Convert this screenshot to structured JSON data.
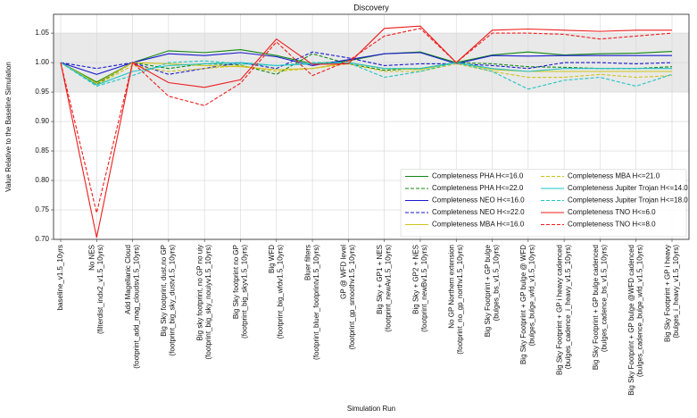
{
  "chart_data": {
    "type": "line",
    "title": "Discovery",
    "x_label": "Simulation Run",
    "y_label": "Value Relative to the Baseline Simulation",
    "categories": [
      [
        "baseline_v1.5_10yrs"
      ],
      [
        "No NES",
        "(filterdist_indx2_v1.5_10yrs)"
      ],
      [
        "Add Magellanic Cloud",
        "(footprint_add_mag_cloudsv1.5_10yrs)"
      ],
      [
        "Big Sky footprint, dust,no GP",
        "(footprint_big_sky_dustv1.5_10yrs)"
      ],
      [
        "Big sky footprint, no GP no uiy",
        "(footprint_big_sky_nouiyv1.5_10yrs)"
      ],
      [
        "Big Sky footprint no GP",
        "(footprint_big_skyv1.5_10yrs)"
      ],
      [
        "Big WFD",
        "(footprint_big_wfdv1.5_10yrs)"
      ],
      [
        "Bluer filters",
        "(footprint_bluer_footprintv1.5_10yrs)"
      ],
      [
        "GP @ WFD level",
        "(footprint_gp_smoothv1.5_10yrs)"
      ],
      [
        "Big Sky + GP1 + NES",
        "(footprint_newAv1.5_10yrs)"
      ],
      [
        "Big Sky + GP2 + NES",
        "(footprint_newBv1.5_10yrs)"
      ],
      [
        "No GP Northern extension",
        "(footprint_no_gp_northv1.5_10yrs)"
      ],
      [
        "Big Sky Footprint + GP bulge",
        "(bulges_bs_v1.5_10yrs)"
      ],
      [
        "Big Sky Footprint + GP bulge @ WFD",
        "(bulges_bulge_wfd_v1.5_10yrs)"
      ],
      [
        "Big Sky Footprint + GP i heavy cadenced",
        "(bulges_cadence_i_heavy_v1.5_10yrs)"
      ],
      [
        "Big Sky Footprint + GP bulge cadenced",
        "(bulges_cadence_bs_v1.5_10yrs)"
      ],
      [
        "Big Sky Footprint + GP bulge @WFD cadenced",
        "(bulges_cadence_bulge_wfd_v1.5_10yrs)"
      ],
      [
        "Big Sky Footprint + GP i heavy",
        "(bulges_i_heavy_v1.5_10yrs)"
      ]
    ],
    "series": [
      {
        "name": "Completeness PHA H<=16.0",
        "color": "#118811",
        "dash": false,
        "values": [
          1,
          0.967,
          1.0,
          1.02,
          1.017,
          1.022,
          1.012,
          0.998,
          1.003,
          1.015,
          1.018,
          1.0,
          1.013,
          1.018,
          1.013,
          1.015,
          1.016,
          1.019
        ]
      },
      {
        "name": "Completeness PHA H<=22.0",
        "color": "#118811",
        "dash": true,
        "values": [
          1,
          0.963,
          1.0,
          0.99,
          0.998,
          0.996,
          0.98,
          1.015,
          0.998,
          0.987,
          0.99,
          1.0,
          0.998,
          0.993,
          0.992,
          0.99,
          0.99,
          0.993
        ]
      },
      {
        "name": "Completeness NEO H<=16.0",
        "color": "#1a1ad0",
        "dash": false,
        "values": [
          1,
          0.98,
          1.0,
          1.015,
          1.012,
          1.017,
          1.01,
          0.995,
          1.005,
          1.015,
          1.017,
          0.998,
          1.012,
          1.011,
          1.012,
          1.012,
          1.012,
          1.012
        ]
      },
      {
        "name": "Completeness NEO H<=22.0",
        "color": "#1a1ad0",
        "dash": true,
        "values": [
          1,
          0.99,
          1.0,
          0.98,
          0.99,
          1.0,
          0.99,
          1.018,
          1.008,
          0.995,
          0.998,
          0.998,
          0.995,
          0.99,
          1.0,
          1.0,
          0.998,
          1.0
        ]
      },
      {
        "name": "Completeness MBA H<=16.0",
        "color": "#cfc31a",
        "dash": false,
        "values": [
          1,
          0.965,
          1.0,
          0.998,
          0.995,
          0.993,
          0.988,
          0.99,
          1.0,
          0.99,
          0.988,
          1.0,
          0.988,
          0.985,
          0.985,
          0.985,
          0.985,
          0.985
        ]
      },
      {
        "name": "Completeness MBA H<=21.0",
        "color": "#cfc31a",
        "dash": true,
        "values": [
          1,
          0.962,
          0.995,
          0.985,
          0.99,
          0.995,
          0.985,
          0.99,
          0.998,
          0.985,
          0.985,
          0.998,
          0.985,
          0.975,
          0.975,
          0.98,
          0.975,
          0.978
        ]
      },
      {
        "name": "Completeness Jupiter Trojan H<=14.0",
        "color": "#22c4c4",
        "dash": false,
        "values": [
          1,
          0.962,
          0.985,
          0.995,
          0.998,
          1.0,
          0.995,
          0.998,
          1.0,
          0.99,
          0.99,
          1.0,
          0.99,
          0.985,
          0.99,
          0.99,
          0.99,
          0.99
        ]
      },
      {
        "name": "Completeness Jupiter Trojan H<=18.0",
        "color": "#22c4c4",
        "dash": true,
        "values": [
          1,
          0.96,
          0.978,
          1.0,
          1.003,
          0.998,
          0.995,
          1.0,
          1.0,
          0.975,
          0.985,
          1.0,
          0.985,
          0.955,
          0.97,
          0.975,
          0.96,
          0.98
        ]
      },
      {
        "name": "Completeness TNO H<=6.0",
        "color": "#ee1c1c",
        "dash": false,
        "values": [
          1,
          0.703,
          1.0,
          0.966,
          0.958,
          0.971,
          1.04,
          0.997,
          0.998,
          1.058,
          1.062,
          1.0,
          1.055,
          1.057,
          1.055,
          1.053,
          1.055,
          1.055
        ]
      },
      {
        "name": "Completeness TNO H<=8.0",
        "color": "#ee1c1c",
        "dash": true,
        "values": [
          1,
          0.745,
          1.0,
          0.943,
          0.927,
          0.965,
          1.035,
          0.978,
          1.003,
          1.045,
          1.058,
          1.0,
          1.05,
          1.05,
          1.048,
          1.04,
          1.045,
          1.05
        ]
      }
    ],
    "ylim": [
      0.7,
      1.082
    ],
    "yticks": [
      {
        "value": 0.7,
        "label": "0.70"
      },
      {
        "value": 0.75,
        "label": "0.75"
      },
      {
        "value": 0.8,
        "label": "0.80"
      },
      {
        "value": 0.85,
        "label": "0.85"
      },
      {
        "value": 0.9,
        "label": "0.90"
      },
      {
        "value": 0.95,
        "label": "0.95"
      },
      {
        "value": 1.0,
        "label": "1.00"
      },
      {
        "value": 1.05,
        "label": "1.05"
      }
    ],
    "band": [
      0.95,
      1.05
    ],
    "grid": true,
    "legend": "lower right"
  }
}
